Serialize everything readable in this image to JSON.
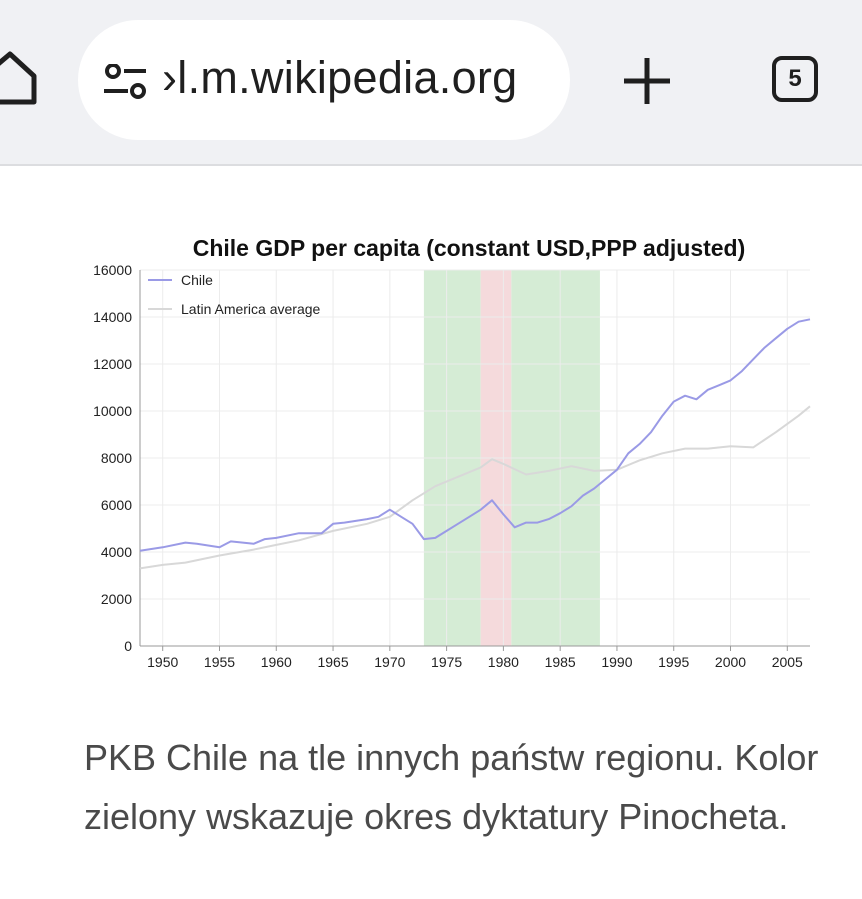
{
  "browser": {
    "url": "›l.m.wikipedia.org",
    "tab_count": "5",
    "icons": [
      "home-icon",
      "site-settings-icon",
      "new-tab-plus-icon",
      "tab-switcher-icon"
    ]
  },
  "chart_data": {
    "type": "line",
    "title": "Chile GDP per capita (constant USD,PPP adjusted)",
    "xlabel": "",
    "ylabel": "",
    "xlim": [
      1948,
      2007
    ],
    "ylim": [
      0,
      16000
    ],
    "x_ticks": [
      1950,
      1955,
      1960,
      1965,
      1970,
      1975,
      1980,
      1985,
      1990,
      1995,
      2000,
      2005
    ],
    "y_ticks": [
      0,
      2000,
      4000,
      6000,
      8000,
      10000,
      12000,
      14000,
      16000
    ],
    "grid": true,
    "legend_position": "top-left",
    "shaded_periods": [
      {
        "start": 1973,
        "end": 1978,
        "color": "#d5ecd5"
      },
      {
        "start": 1978,
        "end": 1980.7,
        "color": "#f5dadc"
      },
      {
        "start": 1980.7,
        "end": 1988.5,
        "color": "#d5ecd5"
      }
    ],
    "series": [
      {
        "name": "Chile",
        "color": "#9a9ae6",
        "x": [
          1948,
          1950,
          1952,
          1953,
          1955,
          1956,
          1958,
          1959,
          1960,
          1962,
          1964,
          1965,
          1966,
          1968,
          1969,
          1970,
          1971,
          1972,
          1973,
          1974,
          1975,
          1976,
          1977,
          1978,
          1979,
          1980,
          1981,
          1982,
          1983,
          1984,
          1985,
          1986,
          1987,
          1988,
          1989,
          1990,
          1991,
          1992,
          1993,
          1994,
          1995,
          1996,
          1997,
          1998,
          1999,
          2000,
          2001,
          2002,
          2003,
          2004,
          2005,
          2006,
          2007
        ],
        "y": [
          4050,
          4200,
          4400,
          4350,
          4200,
          4450,
          4350,
          4550,
          4600,
          4800,
          4800,
          5200,
          5250,
          5400,
          5500,
          5800,
          5500,
          5200,
          4550,
          4600,
          4900,
          5200,
          5500,
          5800,
          6200,
          5600,
          5050,
          5250,
          5250,
          5400,
          5650,
          5950,
          6400,
          6700,
          7100,
          7500,
          8200,
          8600,
          9100,
          9800,
          10400,
          10650,
          10500,
          10900,
          11100,
          11300,
          11700,
          12200,
          12700,
          13100,
          13500,
          13800,
          13900
        ]
      },
      {
        "name": "Latin America average",
        "color": "#d8d8d8",
        "x": [
          1948,
          1950,
          1952,
          1955,
          1958,
          1960,
          1962,
          1965,
          1968,
          1970,
          1972,
          1974,
          1976,
          1978,
          1979,
          1980,
          1982,
          1984,
          1986,
          1988,
          1990,
          1992,
          1994,
          1996,
          1998,
          2000,
          2002,
          2004,
          2006,
          2007
        ],
        "y": [
          3300,
          3450,
          3550,
          3850,
          4100,
          4300,
          4500,
          4900,
          5200,
          5500,
          6200,
          6800,
          7200,
          7600,
          7950,
          7750,
          7300,
          7450,
          7650,
          7450,
          7500,
          7900,
          8200,
          8400,
          8400,
          8500,
          8450,
          9100,
          9800,
          10200
        ]
      }
    ]
  },
  "caption": {
    "text": "PKB Chile na tle innych państw regionu. Kolor zielony wskazuje okres dyktatury Pinocheta."
  }
}
